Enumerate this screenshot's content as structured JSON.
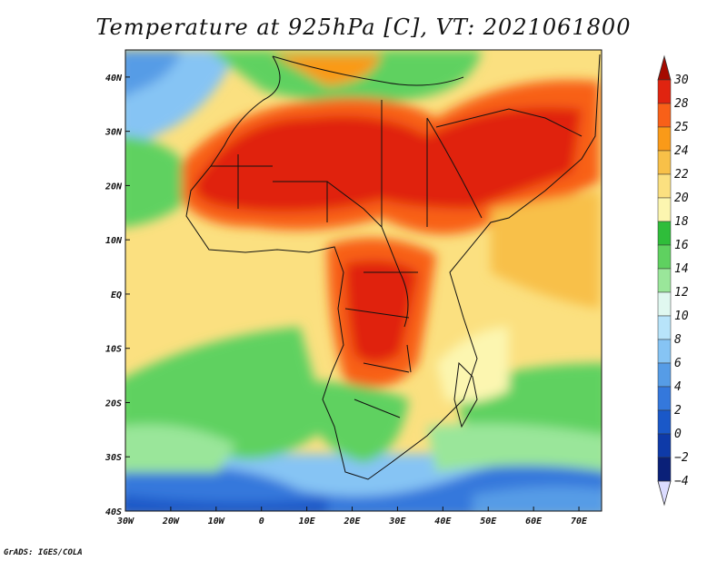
{
  "title": "Temperature at 925hPa [C], VT: 2021061800",
  "credit": "GrADS: IGES/COLA",
  "map": {
    "lon_range": [
      -30,
      75
    ],
    "lat_range": [
      -40,
      45
    ],
    "lon_ticks": [
      {
        "value": -30,
        "label": "30W"
      },
      {
        "value": -20,
        "label": "20W"
      },
      {
        "value": -10,
        "label": "10W"
      },
      {
        "value": 0,
        "label": "0"
      },
      {
        "value": 10,
        "label": "10E"
      },
      {
        "value": 20,
        "label": "20E"
      },
      {
        "value": 30,
        "label": "30E"
      },
      {
        "value": 40,
        "label": "40E"
      },
      {
        "value": 50,
        "label": "50E"
      },
      {
        "value": 60,
        "label": "60E"
      },
      {
        "value": 70,
        "label": "70E"
      }
    ],
    "lat_ticks": [
      {
        "value": 40,
        "label": "40N"
      },
      {
        "value": 30,
        "label": "30N"
      },
      {
        "value": 20,
        "label": "20N"
      },
      {
        "value": 10,
        "label": "10N"
      },
      {
        "value": 0,
        "label": "EQ"
      },
      {
        "value": -10,
        "label": "10S"
      },
      {
        "value": -20,
        "label": "20S"
      },
      {
        "value": -30,
        "label": "30S"
      },
      {
        "value": -40,
        "label": "40S"
      }
    ]
  },
  "colorbar": {
    "levels": [
      "30",
      "28",
      "25",
      "24",
      "22",
      "20",
      "18",
      "16",
      "14",
      "12",
      "10",
      "8",
      "6",
      "4",
      "2",
      "0",
      "−2",
      "−4"
    ],
    "colors": [
      "#a50a00",
      "#e02410",
      "#f86018",
      "#fa9a18",
      "#f8c048",
      "#fbe080",
      "#fcf6b0",
      "#2fbd3a",
      "#5fd160",
      "#9ae69a",
      "#e0f8f0",
      "#b8e4fa",
      "#86c4f4",
      "#569ce6",
      "#3478dc",
      "#1a58c8",
      "#0e3aa8",
      "#0a2078",
      "#dcdcff"
    ]
  }
}
